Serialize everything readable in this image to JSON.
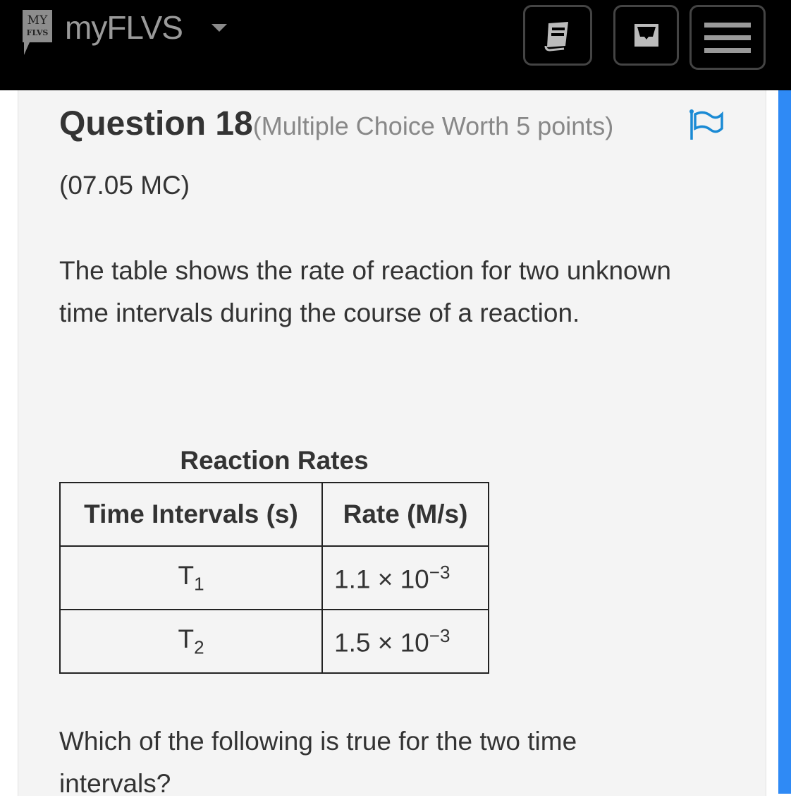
{
  "header": {
    "brand": "myFLVS",
    "logo_text": "MY FLVS",
    "buttons": [
      {
        "icon": "book-icon"
      },
      {
        "icon": "inbox-icon"
      },
      {
        "icon": "menu-icon"
      }
    ]
  },
  "question": {
    "title": "Question 18",
    "meta": "(Multiple Choice Worth 5 points)",
    "code": "(07.05 MC)",
    "intro": "The table shows the rate of reaction for two unknown time intervals during the course of a reaction.",
    "prompt": "Which of the following is true for the two time intervals?"
  },
  "table": {
    "caption": "Reaction Rates",
    "headers": [
      "Time Intervals (s)",
      "Rate (M/s)"
    ],
    "rows": [
      {
        "t": "T",
        "t_sub": "1",
        "rate": "1.1 × 10",
        "rate_exp": "−3"
      },
      {
        "t": "T",
        "t_sub": "2",
        "rate": "1.5 × 10",
        "rate_exp": "−3"
      }
    ]
  },
  "colors": {
    "accent": "#1a8ad4",
    "scrollbar": "#2f8af5"
  }
}
